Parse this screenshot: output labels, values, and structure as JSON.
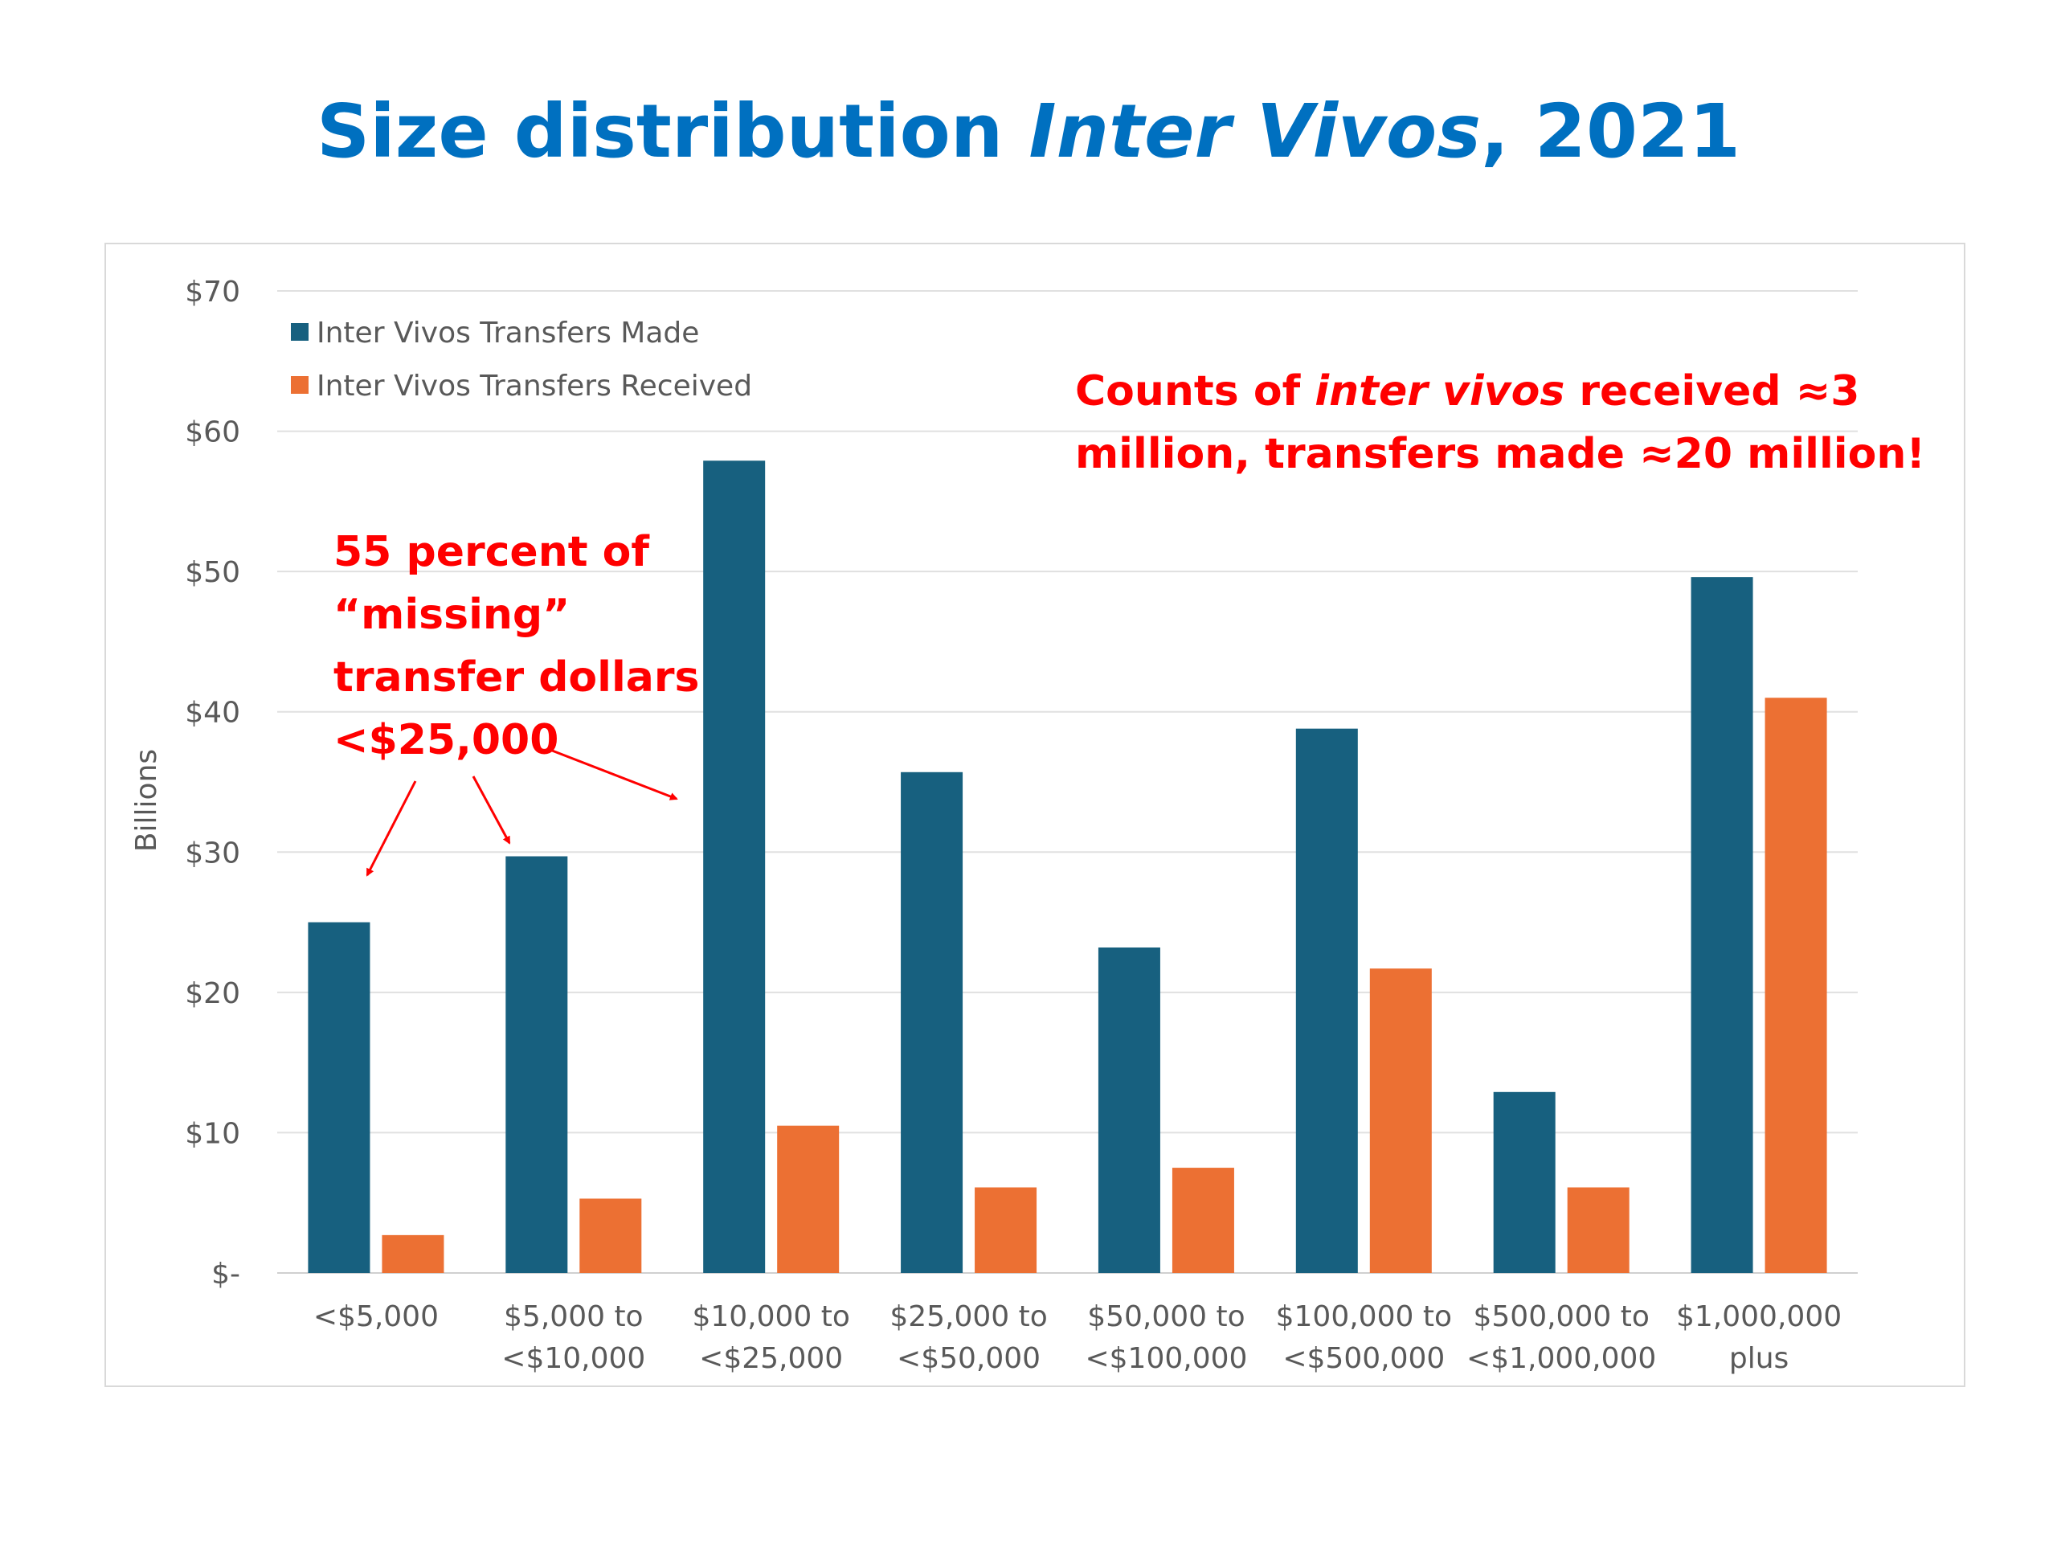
{
  "slide": {
    "title_pre": "Size distribution ",
    "title_italic": "Inter Vivos",
    "title_post": ", 2021"
  },
  "colors": {
    "made": "#17607f",
    "received": "#ec7033",
    "annotation": "#ff0000",
    "title": "#0070c0"
  },
  "chart_data": {
    "type": "bar",
    "ylabel": "Billions",
    "ylim": [
      0,
      70
    ],
    "yticks": [
      {
        "value": 0,
        "label": "$-"
      },
      {
        "value": 10,
        "label": "$10"
      },
      {
        "value": 20,
        "label": "$20"
      },
      {
        "value": 30,
        "label": "$30"
      },
      {
        "value": 40,
        "label": "$40"
      },
      {
        "value": 50,
        "label": "$50"
      },
      {
        "value": 60,
        "label": "$60"
      },
      {
        "value": 70,
        "label": "$70"
      }
    ],
    "grid": true,
    "legend_position": "top-left",
    "categories": [
      [
        "<$5,000"
      ],
      [
        "$5,000 to",
        "<$10,000"
      ],
      [
        "$10,000 to",
        "<$25,000"
      ],
      [
        "$25,000 to",
        "<$50,000"
      ],
      [
        "$50,000 to",
        "<$100,000"
      ],
      [
        "$100,000 to",
        "<$500,000"
      ],
      [
        "$500,000 to",
        "<$1,000,000"
      ],
      [
        "$1,000,000",
        "plus"
      ]
    ],
    "series": [
      {
        "name": "Inter Vivos Transfers Made",
        "values": [
          25.0,
          29.7,
          57.9,
          35.7,
          23.2,
          38.8,
          12.9,
          49.6
        ]
      },
      {
        "name": "Inter Vivos Transfers Received",
        "values": [
          2.7,
          5.3,
          10.5,
          6.1,
          7.5,
          21.7,
          6.1,
          41.0
        ]
      }
    ],
    "annotations": {
      "right": {
        "line1_pre": "Counts of ",
        "line1_italic": "inter vivos",
        "line1_post": " received ≈3",
        "line2": "million, transfers made ≈20 million!"
      },
      "left": {
        "lines": [
          "55 percent of",
          "“missing”",
          "transfer dollars",
          "<$25,000"
        ]
      }
    }
  }
}
